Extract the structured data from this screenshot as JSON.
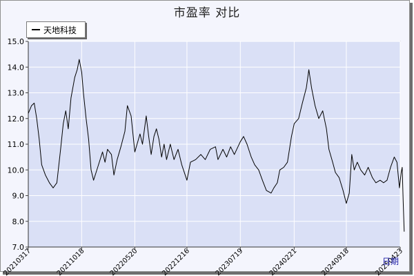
{
  "chart_data": {
    "type": "line",
    "title": "市盈率  对比",
    "xlabel": "日期",
    "ylabel": "",
    "ylim": [
      7.0,
      15.0
    ],
    "yticks": [
      "7.0",
      "8.0",
      "9.0",
      "10.0",
      "11.0",
      "12.0",
      "13.0",
      "14.0",
      "15.0"
    ],
    "xticks": [
      "20210317",
      "20211018",
      "20220520",
      "20221216",
      "20230719",
      "20240221",
      "20240918",
      "20250423"
    ],
    "legend": "top-left",
    "grid": true,
    "series": [
      {
        "name": "天地科技",
        "color": "#000000",
        "points": [
          [
            "20210317",
            12.2
          ],
          [
            "20210330",
            12.5
          ],
          [
            "20210410",
            12.6
          ],
          [
            "20210420",
            12.0
          ],
          [
            "20210430",
            11.2
          ],
          [
            "20210510",
            10.2
          ],
          [
            "20210525",
            9.8
          ],
          [
            "20210610",
            9.5
          ],
          [
            "20210625",
            9.3
          ],
          [
            "20210710",
            9.5
          ],
          [
            "20210725",
            10.8
          ],
          [
            "20210805",
            11.8
          ],
          [
            "20210815",
            12.3
          ],
          [
            "20210825",
            11.6
          ],
          [
            "20210905",
            12.8
          ],
          [
            "20210920",
            13.6
          ],
          [
            "20210930",
            13.9
          ],
          [
            "20211008",
            14.3
          ],
          [
            "20211018",
            13.8
          ],
          [
            "20211025",
            13.0
          ],
          [
            "20211105",
            12.0
          ],
          [
            "20211115",
            11.2
          ],
          [
            "20211125",
            10.0
          ],
          [
            "20211205",
            9.6
          ],
          [
            "20211215",
            9.9
          ],
          [
            "20211228",
            10.3
          ],
          [
            "20220110",
            10.7
          ],
          [
            "20220120",
            10.3
          ],
          [
            "20220130",
            10.8
          ],
          [
            "20220215",
            10.6
          ],
          [
            "20220225",
            9.8
          ],
          [
            "20220310",
            10.4
          ],
          [
            "20220325",
            10.9
          ],
          [
            "20220410",
            11.5
          ],
          [
            "20220420",
            12.5
          ],
          [
            "20220505",
            12.1
          ],
          [
            "20220520",
            10.7
          ],
          [
            "20220610",
            11.4
          ],
          [
            "20220620",
            11.0
          ],
          [
            "20220705",
            12.1
          ],
          [
            "20220715",
            11.3
          ],
          [
            "20220725",
            10.6
          ],
          [
            "20220805",
            11.3
          ],
          [
            "20220815",
            11.6
          ],
          [
            "20220825",
            11.2
          ],
          [
            "20220905",
            10.5
          ],
          [
            "20220915",
            11.0
          ],
          [
            "20220925",
            10.4
          ],
          [
            "20221010",
            11.0
          ],
          [
            "20221025",
            10.4
          ],
          [
            "20221110",
            10.8
          ],
          [
            "20221125",
            10.2
          ],
          [
            "20221216",
            9.6
          ],
          [
            "20221230",
            10.3
          ],
          [
            "20230120",
            10.4
          ],
          [
            "20230210",
            10.6
          ],
          [
            "20230228",
            10.4
          ],
          [
            "20230320",
            10.8
          ],
          [
            "20230410",
            10.9
          ],
          [
            "20230420",
            10.4
          ],
          [
            "20230510",
            10.8
          ],
          [
            "20230525",
            10.5
          ],
          [
            "20230610",
            10.9
          ],
          [
            "20230625",
            10.6
          ],
          [
            "20230719",
            11.1
          ],
          [
            "20230801",
            11.3
          ],
          [
            "20230815",
            11.0
          ],
          [
            "20230901",
            10.5
          ],
          [
            "20230915",
            10.2
          ],
          [
            "20231001",
            10.0
          ],
          [
            "20231016",
            9.6
          ],
          [
            "20231101",
            9.2
          ],
          [
            "20231120",
            9.1
          ],
          [
            "20231201",
            9.3
          ],
          [
            "20231215",
            9.5
          ],
          [
            "20231225",
            10.0
          ],
          [
            "20240110",
            10.1
          ],
          [
            "20240125",
            10.3
          ],
          [
            "20240210",
            11.3
          ],
          [
            "20240221",
            11.8
          ],
          [
            "20240310",
            12.0
          ],
          [
            "20240325",
            12.6
          ],
          [
            "20240410",
            13.2
          ],
          [
            "20240420",
            13.9
          ],
          [
            "20240501",
            13.2
          ],
          [
            "20240515",
            12.5
          ],
          [
            "20240530",
            12.0
          ],
          [
            "20240615",
            12.3
          ],
          [
            "20240630",
            11.6
          ],
          [
            "20240710",
            10.8
          ],
          [
            "20240725",
            10.3
          ],
          [
            "20240805",
            9.9
          ],
          [
            "20240820",
            9.7
          ],
          [
            "20240905",
            9.2
          ],
          [
            "20240918",
            8.7
          ],
          [
            "20240930",
            9.1
          ],
          [
            "20241010",
            10.6
          ],
          [
            "20241020",
            10.0
          ],
          [
            "20241101",
            10.3
          ],
          [
            "20241115",
            10.0
          ],
          [
            "20241201",
            9.8
          ],
          [
            "20241215",
            10.1
          ],
          [
            "20250101",
            9.7
          ],
          [
            "20250115",
            9.5
          ],
          [
            "20250201",
            9.6
          ],
          [
            "20250215",
            9.5
          ],
          [
            "20250301",
            9.6
          ],
          [
            "20250315",
            10.1
          ],
          [
            "20250330",
            10.5
          ],
          [
            "20250410",
            10.3
          ],
          [
            "20250420",
            9.3
          ],
          [
            "20250427",
            9.9
          ],
          [
            "20250501",
            10.1
          ],
          [
            "20250505",
            8.8
          ],
          [
            "20250509",
            7.6
          ]
        ]
      }
    ]
  }
}
